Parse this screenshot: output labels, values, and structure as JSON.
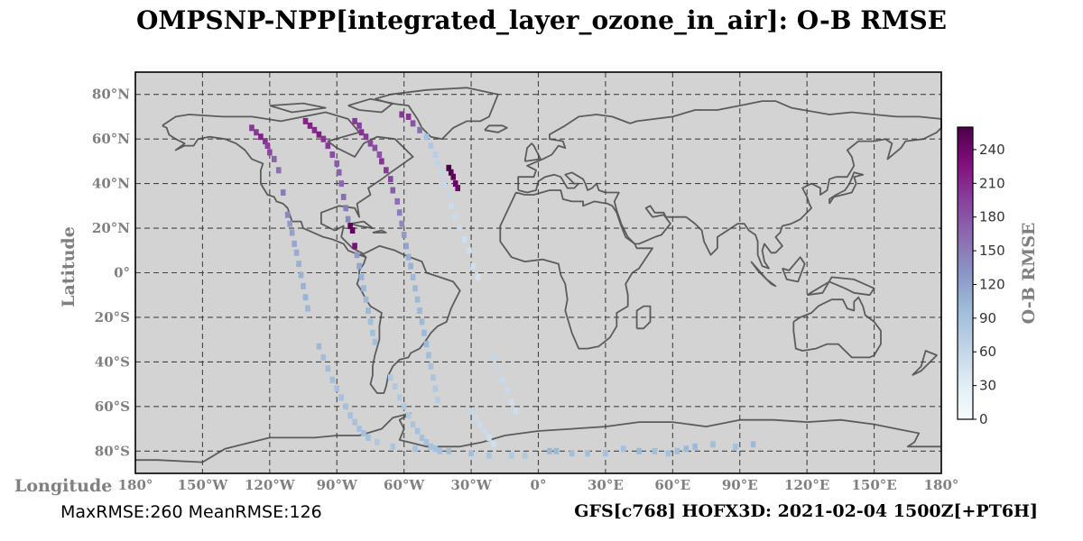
{
  "title": "OMPSNP-NPP[integrated_layer_ozone_in_air]: O-B RMSE",
  "ylabel": "Latitude",
  "xlabel": "Longitude",
  "colorbar_label": "O-B RMSE",
  "stats_text": "MaxRMSE:260 MeanRMSE:126",
  "footer_right": "GFS[c768] HOFX3D: 2021-02-04 1500Z[+PT6H]",
  "colors": {
    "ocean": "#d3d3d3",
    "coast": "#5c5c5c",
    "grid": "#444444",
    "cmap": [
      "#f7fcfd",
      "#e0ecf4",
      "#bfd3e6",
      "#9ebcda",
      "#8c96c6",
      "#8c6bb1",
      "#88419d",
      "#810f7c",
      "#4d004b"
    ]
  },
  "chart_data": {
    "type": "scatter",
    "projection": "PlateCarree",
    "xlim": [
      -180,
      180
    ],
    "ylim": [
      -90,
      90
    ],
    "grid": true,
    "lat_ticks": [
      80,
      60,
      40,
      20,
      0,
      -20,
      -40,
      -60,
      -80
    ],
    "lat_tick_labels": [
      "80°N",
      "60°N",
      "40°N",
      "20°N",
      "0°",
      "20°S",
      "40°S",
      "60°S",
      "80°S"
    ],
    "lon_ticks": [
      -180,
      -150,
      -120,
      -90,
      -60,
      -30,
      0,
      30,
      60,
      90,
      120,
      150,
      180
    ],
    "lon_tick_labels": [
      "180°",
      "150°W",
      "120°W",
      "90°W",
      "60°W",
      "30°W",
      "0°",
      "30°E",
      "60°E",
      "90°E",
      "120°E",
      "150°E",
      "180°"
    ],
    "colorbar": {
      "vmin": 0,
      "vmax": 260,
      "ticks": [
        0,
        30,
        60,
        90,
        120,
        150,
        180,
        210,
        240
      ]
    },
    "tracks": [
      {
        "points": [
          [
            -128,
            65,
            200
          ],
          [
            -126,
            63,
            200
          ],
          [
            -124,
            61,
            215
          ],
          [
            -122,
            59,
            205
          ],
          [
            -121,
            57,
            195
          ],
          [
            -120,
            54,
            190
          ],
          [
            -118,
            51,
            170
          ],
          [
            -116,
            46,
            160
          ],
          [
            -114,
            36,
            150
          ],
          [
            -112,
            26,
            140
          ],
          [
            -111,
            22,
            125
          ],
          [
            -110,
            18,
            120
          ],
          [
            -109,
            13,
            115
          ],
          [
            -108,
            9,
            110
          ],
          [
            -107,
            4,
            108
          ],
          [
            -106,
            -1,
            107
          ],
          [
            -105,
            -6,
            105
          ],
          [
            -104,
            -11,
            105
          ],
          [
            -103,
            -16,
            102
          ]
        ]
      },
      {
        "points": [
          [
            -104,
            68,
            215
          ],
          [
            -102,
            66,
            215
          ],
          [
            -100,
            64,
            210
          ],
          [
            -98,
            62,
            220
          ],
          [
            -96,
            60,
            205
          ],
          [
            -94,
            57,
            200
          ],
          [
            -92,
            53,
            185
          ],
          [
            -90,
            49,
            175
          ],
          [
            -89,
            45,
            170
          ],
          [
            -88,
            40,
            165
          ],
          [
            -87,
            34,
            160
          ],
          [
            -86,
            29,
            150
          ],
          [
            -85,
            24,
            140
          ],
          [
            -84,
            21,
            250
          ],
          [
            -83,
            19,
            250
          ],
          [
            -82,
            12,
            230
          ],
          [
            -81,
            8,
            125
          ],
          [
            -80,
            3,
            115
          ],
          [
            -79,
            -2,
            105
          ],
          [
            -78,
            -7,
            100
          ],
          [
            -77,
            -12,
            100
          ],
          [
            -76,
            -17,
            100
          ],
          [
            -75,
            -22,
            95
          ],
          [
            -74,
            -27,
            95
          ],
          [
            -73,
            -31,
            95
          ]
        ]
      },
      {
        "points": [
          [
            -82,
            68,
            200
          ],
          [
            -80,
            66,
            195
          ],
          [
            -79,
            63,
            205
          ],
          [
            -77,
            61,
            200
          ],
          [
            -75,
            58,
            190
          ],
          [
            -73,
            56,
            185
          ],
          [
            -71,
            53,
            180
          ],
          [
            -70,
            50,
            205
          ],
          [
            -68,
            46,
            200
          ],
          [
            -66,
            42,
            190
          ],
          [
            -65,
            37,
            175
          ],
          [
            -63,
            32,
            160
          ],
          [
            -62,
            27,
            150
          ],
          [
            -61,
            22,
            140
          ],
          [
            -60,
            17,
            125
          ],
          [
            -59,
            12,
            118
          ],
          [
            -58,
            7,
            110
          ],
          [
            -57,
            3,
            105
          ],
          [
            -56,
            -2,
            102
          ],
          [
            -55,
            -7,
            100
          ],
          [
            -54,
            -12,
            100
          ],
          [
            -53,
            -17,
            100
          ],
          [
            -52,
            -22,
            100
          ],
          [
            -51,
            -27,
            100
          ],
          [
            -50,
            -32,
            100
          ],
          [
            -49,
            -37,
            95
          ],
          [
            -48,
            -42,
            90
          ],
          [
            -47,
            -47,
            85
          ],
          [
            -46,
            -52,
            80
          ],
          [
            -45,
            -57,
            75
          ]
        ]
      },
      {
        "points": [
          [
            -61,
            71,
            200
          ],
          [
            -58,
            70,
            205
          ],
          [
            -56,
            67,
            180
          ],
          [
            -53,
            64,
            160
          ],
          [
            -50,
            61,
            90
          ],
          [
            -48,
            57,
            80
          ],
          [
            -46,
            53,
            70
          ],
          [
            -45,
            49,
            65
          ],
          [
            -43,
            45,
            60
          ],
          [
            -42,
            40,
            60
          ],
          [
            -40,
            35,
            60
          ],
          [
            -39,
            30,
            55
          ],
          [
            -37,
            25,
            55
          ],
          [
            -35,
            20,
            55
          ],
          [
            -33,
            15,
            50
          ],
          [
            -31,
            10,
            50
          ],
          [
            -29,
            3,
            50
          ],
          [
            -27,
            -2,
            45
          ]
        ]
      },
      {
        "points": [
          [
            -40,
            47,
            260
          ],
          [
            -39,
            45,
            255
          ],
          [
            -38,
            43,
            250
          ],
          [
            -37,
            40,
            245
          ],
          [
            -36,
            38,
            240
          ]
        ]
      },
      {
        "points": [
          [
            -98,
            -33,
            100
          ],
          [
            -96,
            -38,
            95
          ],
          [
            -94,
            -43,
            95
          ],
          [
            -92,
            -48,
            95
          ],
          [
            -90,
            -52,
            90
          ],
          [
            -88,
            -56,
            90
          ],
          [
            -86,
            -60,
            90
          ],
          [
            -84,
            -64,
            90
          ],
          [
            -82,
            -67,
            90
          ],
          [
            -80,
            -70,
            90
          ],
          [
            -78,
            -72,
            90
          ],
          [
            -76,
            -74,
            90
          ]
        ]
      },
      {
        "points": [
          [
            -66,
            -47,
            80
          ],
          [
            -64,
            -51,
            80
          ],
          [
            -62,
            -56,
            80
          ],
          [
            -60,
            -60,
            80
          ],
          [
            -58,
            -64,
            80
          ],
          [
            -56,
            -68,
            85
          ],
          [
            -54,
            -71,
            90
          ],
          [
            -52,
            -74,
            90
          ],
          [
            -50,
            -76,
            90
          ],
          [
            -48,
            -78,
            90
          ],
          [
            -46,
            -79,
            90
          ],
          [
            -44,
            -80,
            90
          ]
        ]
      },
      {
        "points": [
          [
            -20,
            -38,
            60
          ],
          [
            -18,
            -43,
            60
          ],
          [
            -16,
            -48,
            55
          ],
          [
            -14,
            -53,
            55
          ],
          [
            -12,
            -58,
            50
          ],
          [
            -10,
            -62,
            50
          ]
        ]
      },
      {
        "points": [
          [
            -30,
            -62,
            60
          ],
          [
            -28,
            -65,
            55
          ],
          [
            -26,
            -68,
            55
          ],
          [
            -24,
            -71,
            55
          ],
          [
            -22,
            -74,
            50
          ],
          [
            -20,
            -77,
            50
          ]
        ]
      },
      {
        "points": [
          [
            5,
            -80,
            100
          ],
          [
            8,
            -80,
            100
          ],
          [
            15,
            -81,
            95
          ],
          [
            22,
            -81,
            95
          ],
          [
            30,
            -81,
            90
          ],
          [
            38,
            -79,
            90
          ],
          [
            45,
            -80,
            100
          ],
          [
            52,
            -80,
            95
          ],
          [
            58,
            -81,
            90
          ],
          [
            62,
            -80,
            95
          ],
          [
            66,
            -79,
            100
          ],
          [
            70,
            -78,
            100
          ],
          [
            78,
            -77,
            95
          ],
          [
            88,
            -78,
            90
          ],
          [
            96,
            -77,
            100
          ]
        ]
      },
      {
        "points": [
          [
            -72,
            -76,
            80
          ],
          [
            -65,
            -78,
            85
          ],
          [
            -55,
            -79,
            90
          ],
          [
            -40,
            -80,
            95
          ],
          [
            -30,
            -81,
            95
          ],
          [
            -22,
            -82,
            85
          ],
          [
            -12,
            -82,
            80
          ],
          [
            -6,
            -82,
            80
          ]
        ]
      }
    ]
  }
}
